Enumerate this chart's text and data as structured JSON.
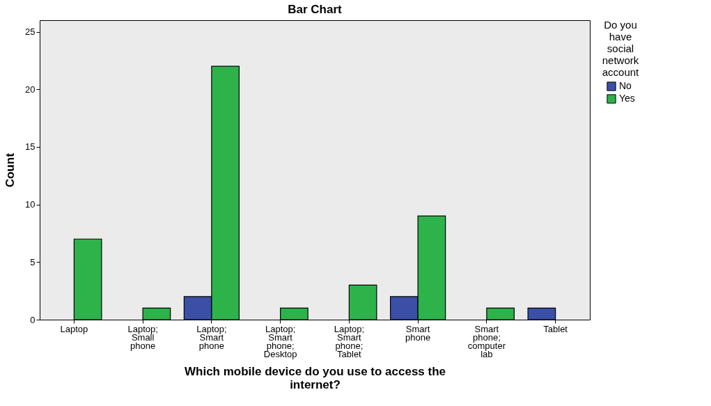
{
  "chart_data": {
    "type": "bar",
    "title": "Bar Chart",
    "xlabel": "Which mobile device do you use to access the internet?",
    "ylabel": "Count",
    "legend_title": "Do you have social network account",
    "categories": [
      "Laptop",
      "Laptop; Small phone",
      "Laptop; Smart phone",
      "Laptop; Smart phone; Desktop",
      "Laptop; Smart phone; Tablet",
      "Smart phone",
      "Smart phone; computer lab",
      "Tablet"
    ],
    "series": [
      {
        "name": "No",
        "color": "#3b4fa6",
        "values": [
          null,
          null,
          2,
          null,
          null,
          2,
          null,
          1
        ]
      },
      {
        "name": "Yes",
        "color": "#2db34a",
        "values": [
          7,
          1,
          22,
          1,
          3,
          9,
          1,
          null
        ]
      }
    ],
    "ylim": [
      0,
      26
    ],
    "yticks": [
      0,
      5,
      10,
      15,
      20,
      25
    ],
    "grid": false,
    "legend": "top right"
  }
}
